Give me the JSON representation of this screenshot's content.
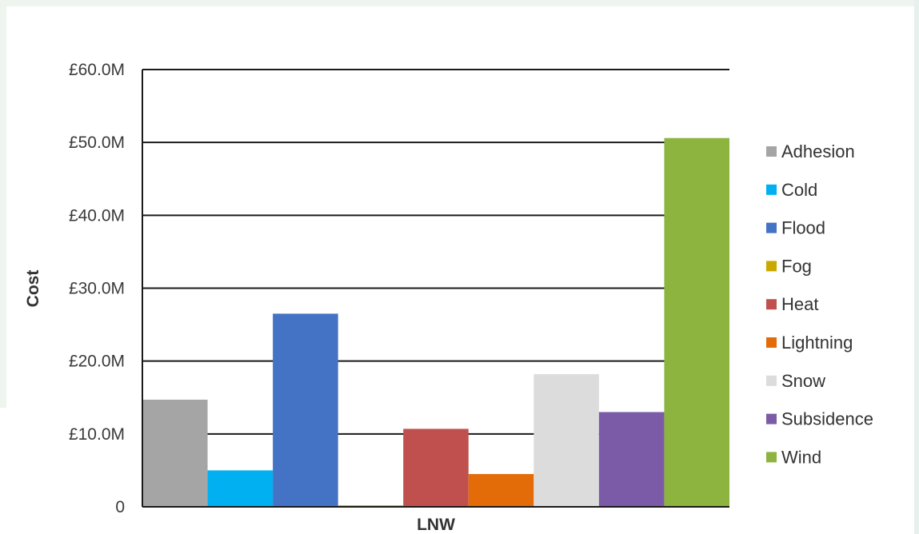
{
  "chart_data": {
    "type": "bar",
    "xlabel": "LNW",
    "ylabel": "Cost",
    "ylim": [
      0,
      60
    ],
    "y_ticks": [
      {
        "value": 0,
        "label": "0"
      },
      {
        "value": 10,
        "label": "£10.0M"
      },
      {
        "value": 20,
        "label": "£20.0M"
      },
      {
        "value": 30,
        "label": "£30.0M"
      },
      {
        "value": 40,
        "label": "£40.0M"
      },
      {
        "value": 50,
        "label": "£50.0M"
      },
      {
        "value": 60,
        "label": "£60.0M"
      }
    ],
    "grid": true,
    "legend_position": "right",
    "categories": [
      "LNW"
    ],
    "series": [
      {
        "name": "Adhesion",
        "color": "#a5a5a5",
        "values": [
          14.7
        ]
      },
      {
        "name": "Cold",
        "color": "#00b0f0",
        "values": [
          5.0
        ]
      },
      {
        "name": "Flood",
        "color": "#4472c4",
        "values": [
          26.5
        ]
      },
      {
        "name": "Fog",
        "color": "#c9a800",
        "values": [
          0.2
        ]
      },
      {
        "name": "Heat",
        "color": "#c0504d",
        "values": [
          10.7
        ]
      },
      {
        "name": "Lightning",
        "color": "#e36c09",
        "values": [
          4.5
        ]
      },
      {
        "name": "Snow",
        "color": "#dcdcdc",
        "values": [
          18.2
        ]
      },
      {
        "name": "Subsidence",
        "color": "#7b5ba8",
        "values": [
          13.0
        ]
      },
      {
        "name": "Wind",
        "color": "#8cb43f",
        "values": [
          50.6
        ]
      }
    ]
  }
}
